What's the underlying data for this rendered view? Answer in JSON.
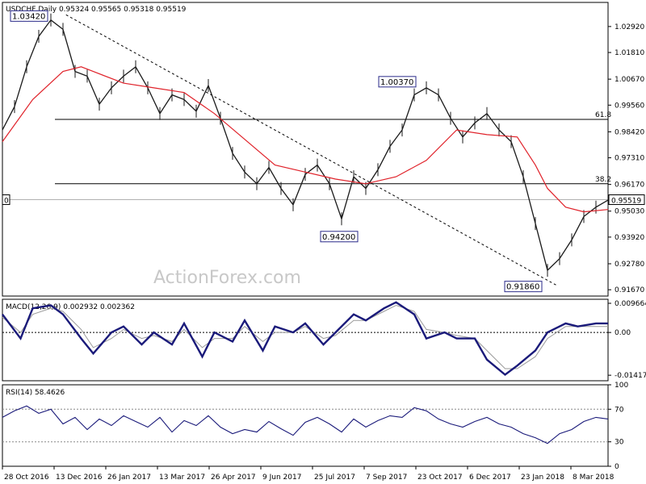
{
  "chart_data": [
    {
      "type": "line",
      "symbol": "USDCHF,Daily",
      "ohlc": "0.95324 0.95565 0.95318 0.95519",
      "watermark": "ActionForex.com",
      "y_ticks": [
        "1.02920",
        "1.01810",
        "1.00670",
        "0.99560",
        "0.98420",
        "0.97310",
        "0.96170",
        "0.95030",
        "0.93920",
        "0.92780",
        "0.91670"
      ],
      "ylim": [
        0.914,
        1.0395
      ],
      "x_ticks": [
        "28 Oct 2016",
        "13 Dec 2016",
        "26 Jan 2017",
        "13 Mar 2017",
        "26 Apr 2017",
        "9 Jun 2017",
        "25 Jul 2017",
        "7 Sep 2017",
        "23 Oct 2017",
        "6 Dec 2017",
        "23 Jan 2018",
        "8 Mar 2018"
      ],
      "last_price": {
        "label": "0.95519",
        "value": 0.95519
      },
      "left_marker": "0",
      "annotations": [
        {
          "label": "1.03420",
          "value": 1.0342
        },
        {
          "label": "1.00370",
          "value": 1.0037
        },
        {
          "label": "0.94200",
          "value": 0.942
        },
        {
          "label": "0.91860",
          "value": 0.9186
        }
      ],
      "fib_levels": [
        {
          "label": "61.8",
          "value": 0.9895
        },
        {
          "label": "38.2",
          "value": 0.962
        }
      ],
      "trendline": {
        "from": {
          "x": 0.105,
          "y": 1.0342
        },
        "to": {
          "x": 0.915,
          "y": 0.9186
        }
      },
      "series": [
        {
          "kind": "price",
          "x": [
            0.0,
            0.02,
            0.04,
            0.06,
            0.08,
            0.1,
            0.12,
            0.14,
            0.16,
            0.18,
            0.2,
            0.22,
            0.24,
            0.26,
            0.28,
            0.3,
            0.32,
            0.34,
            0.36,
            0.38,
            0.4,
            0.42,
            0.44,
            0.46,
            0.48,
            0.5,
            0.52,
            0.54,
            0.56,
            0.58,
            0.6,
            0.62,
            0.64,
            0.66,
            0.68,
            0.7,
            0.72,
            0.74,
            0.76,
            0.78,
            0.8,
            0.82,
            0.84,
            0.86,
            0.88,
            0.9,
            0.92,
            0.94,
            0.96,
            0.98,
            1.0
          ],
          "y": [
            0.985,
            0.995,
            1.012,
            1.025,
            1.032,
            1.028,
            1.01,
            1.008,
            0.996,
            1.003,
            1.008,
            1.012,
            1.003,
            0.992,
            1.0,
            0.998,
            0.993,
            1.004,
            0.99,
            0.975,
            0.967,
            0.962,
            0.969,
            0.96,
            0.953,
            0.966,
            0.97,
            0.962,
            0.947,
            0.965,
            0.96,
            0.968,
            0.978,
            0.985,
            1.0,
            1.003,
            1.0,
            0.99,
            0.982,
            0.988,
            0.992,
            0.985,
            0.98,
            0.965,
            0.945,
            0.925,
            0.93,
            0.938,
            0.948,
            0.952,
            0.955
          ]
        },
        {
          "kind": "ma",
          "x": [
            0.0,
            0.05,
            0.1,
            0.13,
            0.15,
            0.2,
            0.25,
            0.3,
            0.35,
            0.4,
            0.45,
            0.5,
            0.55,
            0.6,
            0.65,
            0.7,
            0.75,
            0.8,
            0.85,
            0.88,
            0.9,
            0.93,
            0.96,
            1.0
          ],
          "y": [
            0.98,
            0.998,
            1.01,
            1.012,
            1.01,
            1.005,
            1.003,
            1.001,
            0.992,
            0.981,
            0.97,
            0.967,
            0.964,
            0.962,
            0.965,
            0.972,
            0.985,
            0.983,
            0.982,
            0.97,
            0.96,
            0.952,
            0.95,
            0.951
          ]
        }
      ]
    },
    {
      "type": "line",
      "title": "MACD(12,26,9) 0.002932 0.002362",
      "y_ticks": [
        "0.009664",
        "0.00",
        "-0.014171"
      ],
      "ylim": [
        -0.016,
        0.011
      ],
      "series": [
        {
          "kind": "macd",
          "x": [
            0.0,
            0.03,
            0.05,
            0.08,
            0.1,
            0.13,
            0.15,
            0.18,
            0.2,
            0.23,
            0.25,
            0.28,
            0.3,
            0.33,
            0.35,
            0.38,
            0.4,
            0.43,
            0.45,
            0.48,
            0.5,
            0.53,
            0.55,
            0.58,
            0.6,
            0.63,
            0.65,
            0.68,
            0.7,
            0.73,
            0.75,
            0.78,
            0.8,
            0.83,
            0.85,
            0.88,
            0.9,
            0.93,
            0.95,
            0.98,
            1.0
          ],
          "y": [
            0.006,
            -0.002,
            0.008,
            0.009,
            0.006,
            -0.002,
            -0.007,
            0.0,
            0.002,
            -0.004,
            0.0,
            -0.004,
            0.003,
            -0.008,
            0.0,
            -0.003,
            0.004,
            -0.006,
            0.002,
            0.0,
            0.003,
            -0.004,
            0.0,
            0.006,
            0.004,
            0.008,
            0.01,
            0.006,
            -0.002,
            0.0,
            -0.002,
            -0.002,
            -0.009,
            -0.014,
            -0.011,
            -0.006,
            0.0,
            0.003,
            0.002,
            0.003,
            0.003
          ]
        },
        {
          "kind": "signal",
          "x": [
            0.0,
            0.03,
            0.05,
            0.08,
            0.1,
            0.13,
            0.15,
            0.18,
            0.2,
            0.23,
            0.25,
            0.28,
            0.3,
            0.33,
            0.35,
            0.38,
            0.4,
            0.43,
            0.45,
            0.48,
            0.5,
            0.53,
            0.55,
            0.58,
            0.6,
            0.63,
            0.65,
            0.68,
            0.7,
            0.73,
            0.75,
            0.78,
            0.8,
            0.83,
            0.85,
            0.88,
            0.9,
            0.93,
            0.95,
            0.98,
            1.0
          ],
          "y": [
            0.005,
            0.0,
            0.006,
            0.008,
            0.007,
            0.001,
            -0.005,
            -0.002,
            0.001,
            -0.002,
            -0.001,
            -0.003,
            0.001,
            -0.005,
            -0.002,
            -0.002,
            0.002,
            -0.003,
            0.0,
            0.0,
            0.002,
            -0.002,
            -0.001,
            0.004,
            0.004,
            0.007,
            0.009,
            0.007,
            0.001,
            0.0,
            -0.001,
            -0.002,
            -0.006,
            -0.012,
            -0.012,
            -0.008,
            -0.002,
            0.002,
            0.002,
            0.002,
            0.002
          ]
        }
      ]
    },
    {
      "type": "line",
      "title": "RSI(14) 58.4626",
      "y_ticks": [
        "100",
        "70",
        "30",
        "0"
      ],
      "ylim": [
        0,
        100
      ],
      "levels": [
        70,
        30
      ],
      "series": [
        {
          "kind": "rsi",
          "x": [
            0.0,
            0.02,
            0.04,
            0.06,
            0.08,
            0.1,
            0.12,
            0.14,
            0.16,
            0.18,
            0.2,
            0.22,
            0.24,
            0.26,
            0.28,
            0.3,
            0.32,
            0.34,
            0.36,
            0.38,
            0.4,
            0.42,
            0.44,
            0.46,
            0.48,
            0.5,
            0.52,
            0.54,
            0.56,
            0.58,
            0.6,
            0.62,
            0.64,
            0.66,
            0.68,
            0.7,
            0.72,
            0.74,
            0.76,
            0.78,
            0.8,
            0.82,
            0.84,
            0.86,
            0.88,
            0.9,
            0.92,
            0.94,
            0.96,
            0.98,
            1.0
          ],
          "y": [
            60,
            68,
            74,
            65,
            70,
            52,
            60,
            45,
            58,
            50,
            62,
            55,
            48,
            60,
            42,
            56,
            50,
            62,
            48,
            40,
            45,
            42,
            55,
            46,
            38,
            54,
            60,
            52,
            42,
            58,
            48,
            56,
            62,
            60,
            72,
            68,
            58,
            52,
            48,
            55,
            60,
            52,
            48,
            40,
            35,
            28,
            40,
            45,
            55,
            60,
            58
          ]
        }
      ]
    }
  ]
}
